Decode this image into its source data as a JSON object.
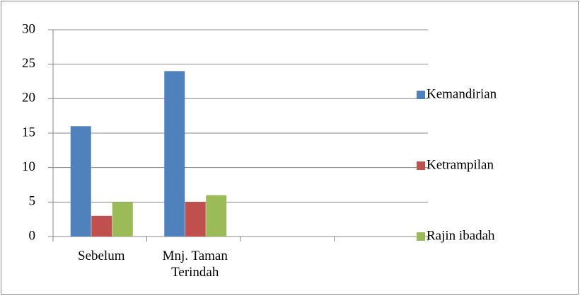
{
  "chart_data": {
    "type": "bar",
    "categories": [
      "Sebelum",
      "Mnj. Taman Terindah",
      null,
      null
    ],
    "series": [
      {
        "name": "Kemandirian",
        "color": "#4f81bd",
        "values": [
          16,
          24,
          null,
          null
        ]
      },
      {
        "name": "Ketrampilan",
        "color": "#c0504d",
        "values": [
          3,
          5,
          null,
          null
        ]
      },
      {
        "name": "Rajin ibadah",
        "color": "#9bbb59",
        "values": [
          5,
          6,
          null,
          null
        ]
      }
    ],
    "ylim": [
      0,
      30
    ],
    "yticks": [
      0,
      5,
      10,
      15,
      20,
      25,
      30
    ],
    "grid": true,
    "legend": "right"
  }
}
